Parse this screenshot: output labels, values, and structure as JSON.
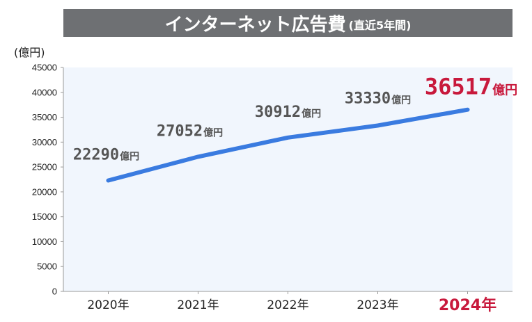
{
  "header": {
    "title": "インターネット広告費",
    "subtitle": "(直近5年間)"
  },
  "y_unit_label": "(億円)",
  "chart_data": {
    "type": "line",
    "title": "インターネット広告費(直近5年間)",
    "ylabel": "(億円)",
    "xlabel": "",
    "categories": [
      "2020年",
      "2021年",
      "2022年",
      "2023年",
      "2024年"
    ],
    "values": [
      22290,
      27052,
      30912,
      33330,
      36517
    ],
    "value_labels": [
      "22290",
      "27052",
      "30912",
      "33330",
      "36517"
    ],
    "value_unit": "億円",
    "ylim": [
      0,
      45000
    ],
    "yticks": [
      0,
      5000,
      10000,
      15000,
      20000,
      25000,
      30000,
      35000,
      40000,
      45000
    ],
    "highlight_index": 4,
    "grid": false,
    "legend": "none",
    "colors": {
      "line": "#3a7be0",
      "plot_background": "#f1f6fd",
      "highlight": "#c8193c",
      "label": "#555555",
      "title_bar": "#6e7073"
    }
  }
}
